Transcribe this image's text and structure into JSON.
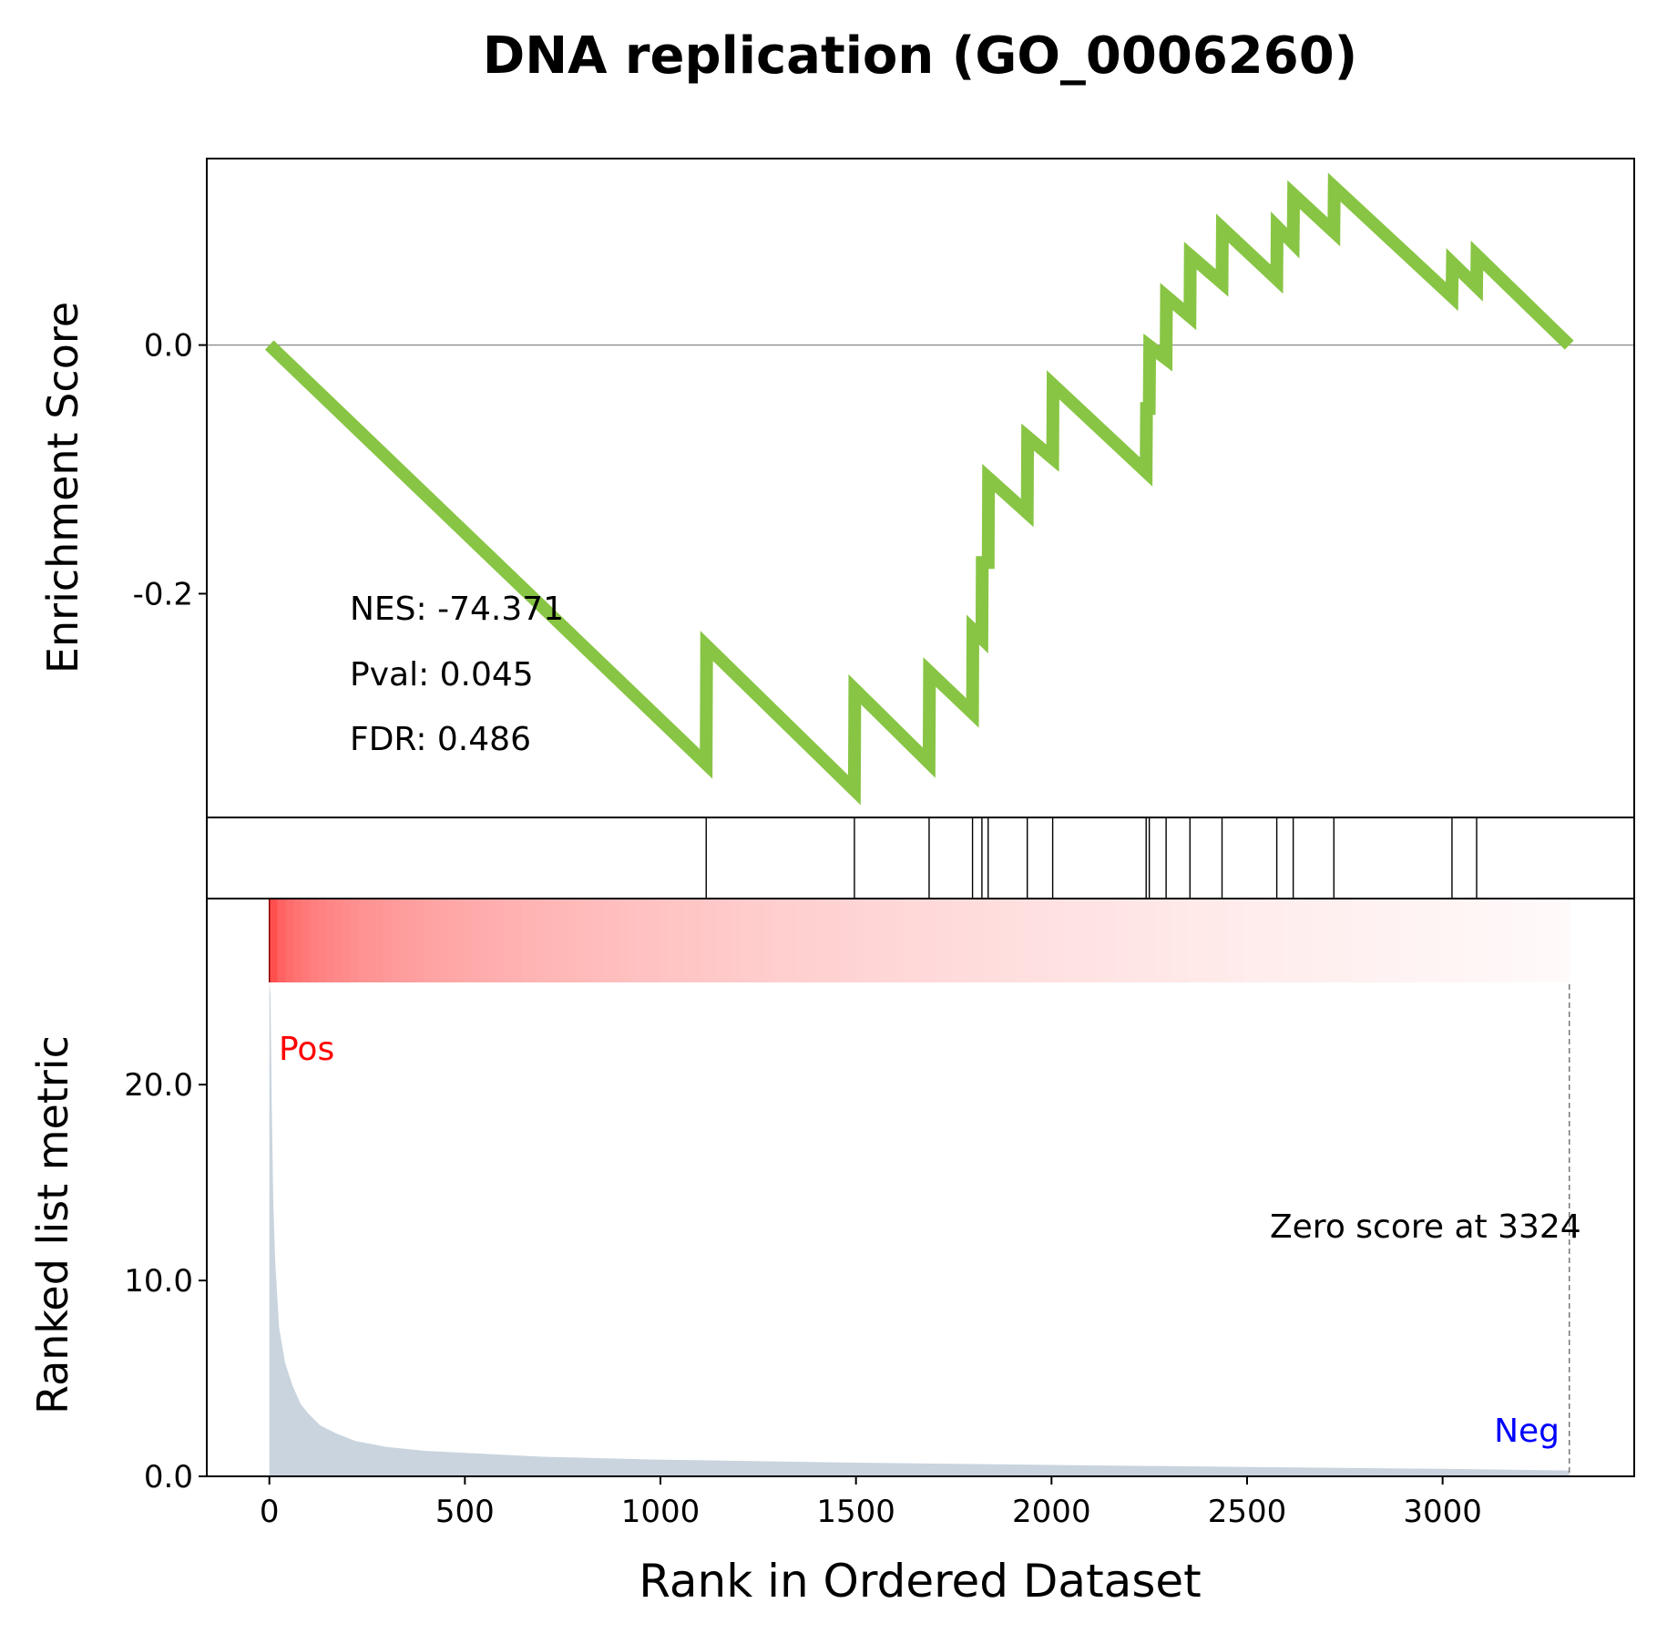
{
  "title": "DNA replication (GO_0006260)",
  "colors": {
    "es_line": "#88c544",
    "ranked_fill": "#c9d4de",
    "pos_label": "#ff0000",
    "neg_label": "#0000ff",
    "heat_high": "#ff0000",
    "heat_low": "#ffffff"
  },
  "stats": {
    "nes": "NES: -74.371",
    "pval": "Pval: 0.045",
    "fdr": "FDR: 0.486"
  },
  "labels": {
    "pos": "Pos",
    "neg": "Neg",
    "zero_score": "Zero score at 3324"
  },
  "chart_data": [
    {
      "type": "line",
      "panel": "enrichment-score",
      "ylabel": "Enrichment Score",
      "xlim": [
        -160,
        3490
      ],
      "ylim": [
        -0.38,
        0.15
      ],
      "yticks": [
        0.0,
        -0.2
      ],
      "ytick_labels": [
        "0.0",
        "-0.2"
      ],
      "baseline": 0.0,
      "points": [
        [
          0,
          0.0
        ],
        [
          1117,
          -0.337
        ],
        [
          1118,
          -0.242
        ],
        [
          1496,
          -0.358
        ],
        [
          1497,
          -0.277
        ],
        [
          1687,
          -0.336
        ],
        [
          1688,
          -0.263
        ],
        [
          1798,
          -0.296
        ],
        [
          1799,
          -0.229
        ],
        [
          1822,
          -0.236
        ],
        [
          1823,
          -0.175
        ],
        [
          1838,
          -0.175
        ],
        [
          1839,
          -0.107
        ],
        [
          1938,
          -0.135
        ],
        [
          1939,
          -0.074
        ],
        [
          2003,
          -0.091
        ],
        [
          2004,
          -0.032
        ],
        [
          2242,
          -0.102
        ],
        [
          2243,
          -0.051
        ],
        [
          2250,
          -0.051
        ],
        [
          2251,
          -0.001
        ],
        [
          2293,
          -0.011
        ],
        [
          2294,
          0.039
        ],
        [
          2354,
          0.023
        ],
        [
          2355,
          0.072
        ],
        [
          2436,
          0.05
        ],
        [
          2437,
          0.094
        ],
        [
          2576,
          0.053
        ],
        [
          2577,
          0.095
        ],
        [
          2618,
          0.082
        ],
        [
          2619,
          0.121
        ],
        [
          2722,
          0.091
        ],
        [
          2723,
          0.127
        ],
        [
          3024,
          0.039
        ],
        [
          3025,
          0.066
        ],
        [
          3087,
          0.047
        ],
        [
          3088,
          0.072
        ],
        [
          3324,
          0.0
        ]
      ]
    },
    {
      "type": "rug",
      "panel": "gene-hits",
      "hits": [
        1117,
        1496,
        1687,
        1798,
        1822,
        1838,
        1938,
        2003,
        2242,
        2250,
        2293,
        2354,
        2436,
        2576,
        2618,
        2722,
        3024,
        3087
      ]
    },
    {
      "type": "area",
      "panel": "ranked-list-metric",
      "xlabel": "Rank in Ordered Dataset",
      "ylabel": "Ranked list metric",
      "xlim": [
        -160,
        3490
      ],
      "ylim": [
        0,
        29.5
      ],
      "xticks": [
        0,
        500,
        1000,
        1500,
        2000,
        2500,
        3000
      ],
      "xtick_labels": [
        "0",
        "500",
        "1000",
        "1500",
        "2000",
        "2500",
        "3000"
      ],
      "yticks": [
        0,
        10,
        20
      ],
      "ytick_labels": [
        "0.0",
        "10.0",
        "20.0"
      ],
      "zero_score_rank": 3324,
      "points": [
        [
          0,
          25.3
        ],
        [
          3,
          24.5
        ],
        [
          6,
          19.0
        ],
        [
          10,
          14.0
        ],
        [
          15,
          11.0
        ],
        [
          25,
          7.6
        ],
        [
          40,
          5.8
        ],
        [
          60,
          4.6
        ],
        [
          80,
          3.7
        ],
        [
          100,
          3.2
        ],
        [
          130,
          2.6
        ],
        [
          170,
          2.2
        ],
        [
          220,
          1.8
        ],
        [
          300,
          1.5
        ],
        [
          400,
          1.3
        ],
        [
          500,
          1.2
        ],
        [
          700,
          1.0
        ],
        [
          1000,
          0.85
        ],
        [
          1500,
          0.7
        ],
        [
          2000,
          0.58
        ],
        [
          2500,
          0.48
        ],
        [
          3000,
          0.38
        ],
        [
          3324,
          0.3
        ]
      ]
    }
  ]
}
